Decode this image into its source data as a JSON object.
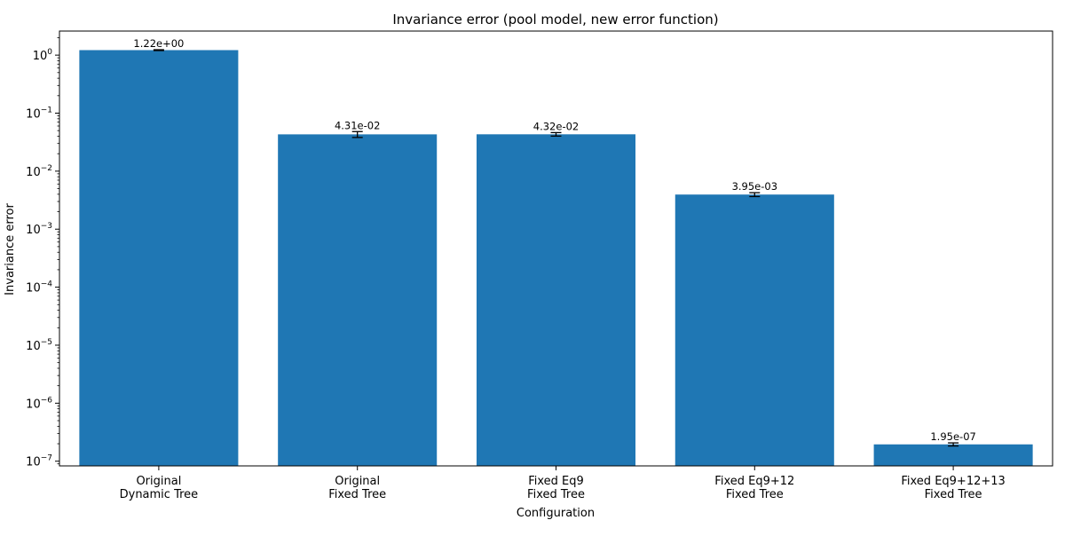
{
  "chart_data": {
    "type": "bar",
    "title": "Invariance error (pool model, new error function)",
    "xlabel": "Configuration",
    "ylabel": "Invariance error",
    "yscale": "log",
    "ylim": [
      8.3e-08,
      2.6
    ],
    "grid": false,
    "categories": [
      [
        "Original",
        "Dynamic Tree"
      ],
      [
        "Original",
        "Fixed Tree"
      ],
      [
        "Fixed Eq9",
        "Fixed Tree"
      ],
      [
        "Fixed Eq9+12",
        "Fixed Tree"
      ],
      [
        "Fixed Eq9+12+13",
        "Fixed Tree"
      ]
    ],
    "values": [
      1.22,
      0.0431,
      0.0432,
      0.00395,
      1.95e-07
    ],
    "errors": [
      0.02,
      0.005,
      0.003,
      0.0003,
      1.2e-08
    ],
    "data_labels": [
      "1.22e+00",
      "4.31e-02",
      "4.32e-02",
      "3.95e-03",
      "1.95e-07"
    ],
    "yticks": [
      {
        "base": "10",
        "exp": "−7",
        "value": 1e-07
      },
      {
        "base": "10",
        "exp": "−6",
        "value": 1e-06
      },
      {
        "base": "10",
        "exp": "−5",
        "value": 1e-05
      },
      {
        "base": "10",
        "exp": "−4",
        "value": 0.0001
      },
      {
        "base": "10",
        "exp": "−3",
        "value": 0.001
      },
      {
        "base": "10",
        "exp": "−2",
        "value": 0.01
      },
      {
        "base": "10",
        "exp": "−1",
        "value": 0.1
      },
      {
        "base": "10",
        "exp": "0",
        "value": 1
      }
    ],
    "colors": {
      "bar": "#1f77b4",
      "errorbar": "#000000",
      "axis": "#000000"
    }
  }
}
